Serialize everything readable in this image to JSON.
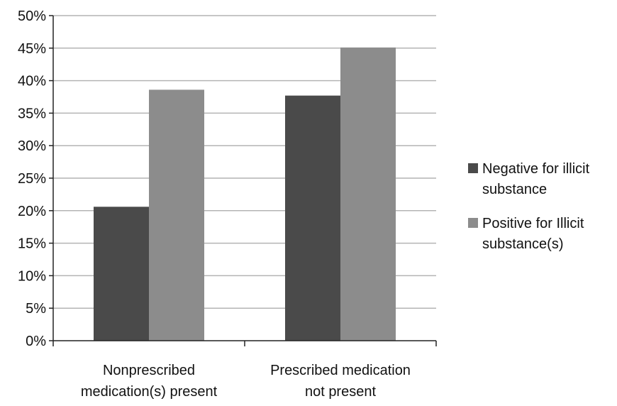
{
  "chart_data": {
    "type": "bar",
    "title": "",
    "xlabel": "",
    "ylabel": "",
    "categories": [
      [
        "Nonprescribed",
        "medication(s) present"
      ],
      [
        "Prescribed medication",
        "not present"
      ]
    ],
    "series": [
      {
        "name": [
          "Negative for illicit",
          "substance"
        ],
        "color": "#4a4a4a",
        "values": [
          20.6,
          37.7
        ]
      },
      {
        "name": [
          "Positive for Illicit",
          "substance(s)"
        ],
        "color": "#8c8c8c",
        "values": [
          38.6,
          45.1
        ]
      }
    ],
    "ylim": [
      0,
      50
    ],
    "yticks": [
      0,
      5,
      10,
      15,
      20,
      25,
      30,
      35,
      40,
      45,
      50
    ],
    "y_tick_suffix": "%",
    "grid": true,
    "legend_position": "right"
  }
}
